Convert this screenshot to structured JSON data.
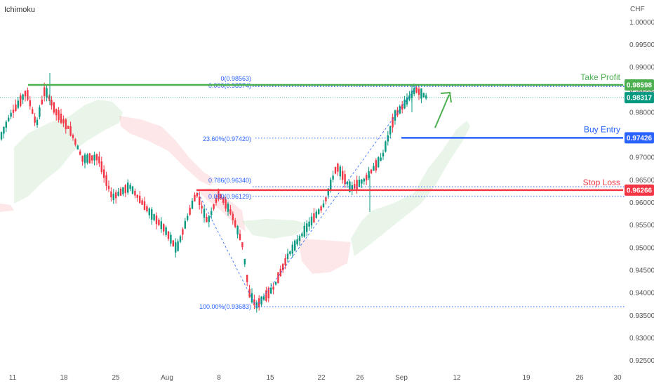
{
  "chart_data": {
    "type": "candlestick",
    "indicator": "Ichimoku",
    "currency": "CHF",
    "y_ticks": [
      "1.00000",
      "0.99500",
      "0.99000",
      "0.98500",
      "0.98000",
      "0.97500",
      "0.97000",
      "0.96500",
      "0.96000",
      "0.95500",
      "0.95000",
      "0.94500",
      "0.94000",
      "0.93500",
      "0.93000",
      "0.92500"
    ],
    "x_ticks": [
      "11",
      "18",
      "25",
      "Aug",
      "8",
      "15",
      "22",
      "26",
      "Sep",
      "12",
      "19",
      "26",
      "30"
    ],
    "ylim": [
      0.9225,
      1.0025
    ],
    "levels": {
      "take_profit": {
        "label": "Take Profit",
        "value": "0.98598",
        "color": "#4caf50"
      },
      "buy_entry": {
        "label": "Buy Entry",
        "value": "0.97426",
        "color": "#2962ff"
      },
      "stop_loss": {
        "label": "Stop Loss",
        "value": "0.96266",
        "color": "#f23645"
      },
      "current_price": {
        "value": "0.98317",
        "color": "#089981"
      }
    },
    "fib_labels": [
      {
        "text": "0(0.98563)",
        "value": 0.98563
      },
      {
        "text": "0.000(0.98574)",
        "value": 0.98574
      },
      {
        "text": "23.60%(0.97420)",
        "value": 0.9742
      },
      {
        "text": "0.786(0.96340)",
        "value": 0.9634
      },
      {
        "text": "0.000(0.96129)",
        "value": 0.96129
      },
      {
        "text": "100.00%(0.93683)",
        "value": 0.93683
      }
    ]
  }
}
